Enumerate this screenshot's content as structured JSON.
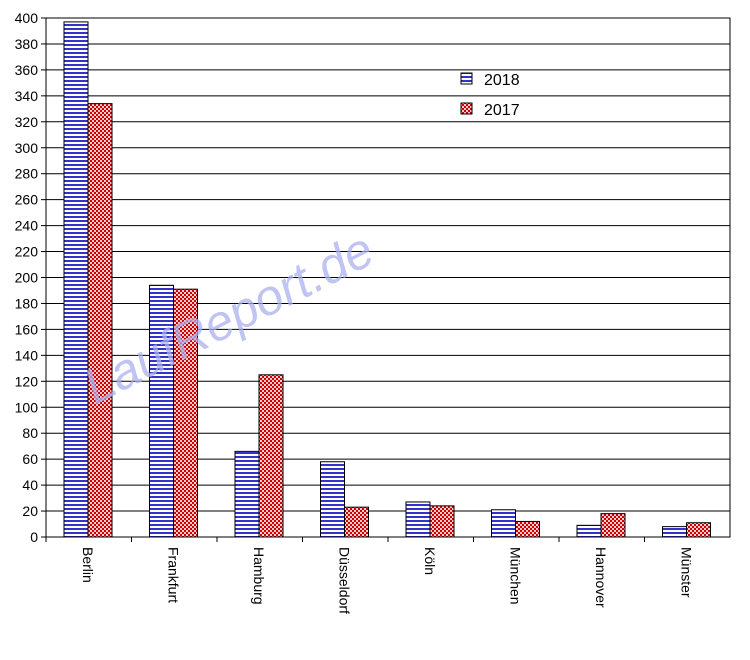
{
  "watermark": "LaufReport.de",
  "chart_data": {
    "type": "bar",
    "title": "",
    "xlabel": "",
    "ylabel": "",
    "ylim": [
      0,
      400
    ],
    "ytick_step": 20,
    "grid": true,
    "legend_position": "top-right",
    "categories": [
      "Berlin",
      "Frankfurt",
      "Hamburg",
      "Düsseldorf",
      "Köln",
      "München",
      "Hannover",
      "Münster"
    ],
    "series": [
      {
        "name": "2018",
        "values": [
          397,
          194,
          66,
          58,
          27,
          21,
          9,
          8
        ],
        "color": "#3333cc",
        "pattern": "horizontal-stripes"
      },
      {
        "name": "2017",
        "values": [
          334,
          191,
          125,
          23,
          24,
          12,
          18,
          11
        ],
        "color": "#cc0000",
        "pattern": "checker"
      }
    ]
  }
}
